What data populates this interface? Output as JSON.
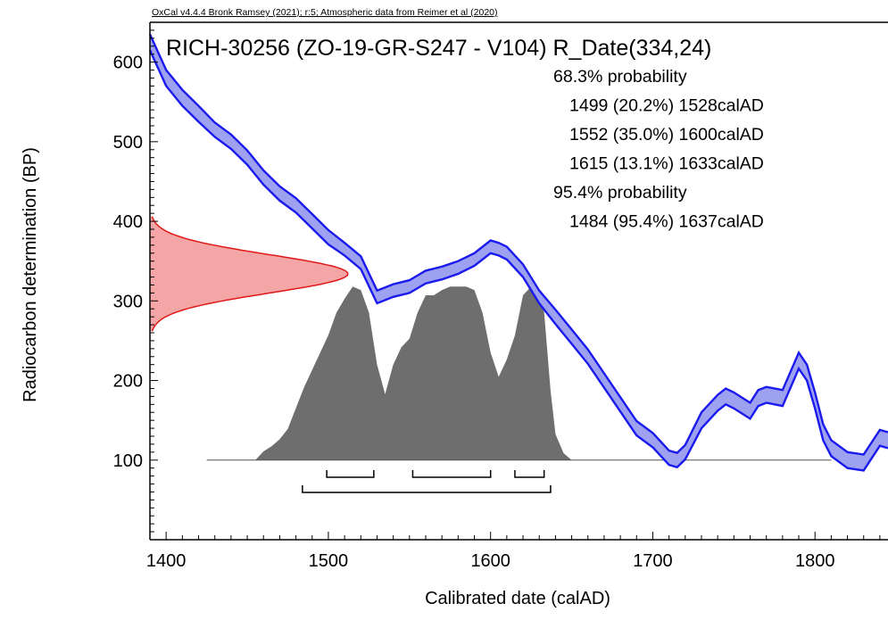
{
  "chart_data": {
    "type": "area",
    "header": "OxCal v4.4.4 Bronk Ramsey (2021); r:5; Atmospheric data from Reimer et al (2020)",
    "title": "RICH-30256 (ZO-19-GR-S247 - V104) R_Date(334,24)",
    "xlabel": "Calibrated date (calAD)",
    "ylabel": "Radiocarbon determination (BP)",
    "xlim": [
      1390,
      1845
    ],
    "ylim": [
      0,
      650
    ],
    "x_ticks": [
      1400,
      1500,
      1600,
      1700,
      1800
    ],
    "y_ticks": [
      100,
      200,
      300,
      400,
      500,
      600
    ],
    "probability_summary": [
      {
        "text": "68.3% probability",
        "level": 0
      },
      {
        "text": "1499 (20.2%) 1528calAD",
        "level": 1
      },
      {
        "text": "1552 (35.0%) 1600calAD",
        "level": 1
      },
      {
        "text": "1615 (13.1%) 1633calAD",
        "level": 1
      },
      {
        "text": "95.4% probability",
        "level": 0
      },
      {
        "text": "1484 (95.4%) 1637calAD",
        "level": 1
      }
    ],
    "ranges_68": [
      [
        1499,
        1528
      ],
      [
        1552,
        1600
      ],
      [
        1615,
        1633
      ]
    ],
    "ranges_95": [
      [
        1484,
        1637
      ]
    ],
    "radiocarbon_date": {
      "mean": 334,
      "sd": 24
    },
    "calibration_curve": {
      "x": [
        1390,
        1400,
        1410,
        1420,
        1430,
        1440,
        1450,
        1460,
        1470,
        1480,
        1490,
        1500,
        1510,
        1520,
        1530,
        1540,
        1550,
        1560,
        1570,
        1580,
        1590,
        1600,
        1605,
        1610,
        1620,
        1630,
        1640,
        1650,
        1660,
        1670,
        1680,
        1690,
        1700,
        1710,
        1715,
        1720,
        1730,
        1740,
        1745,
        1750,
        1760,
        1765,
        1770,
        1780,
        1790,
        1795,
        1800,
        1805,
        1810,
        1820,
        1830,
        1840,
        1845
      ],
      "mean": [
        625,
        580,
        555,
        535,
        515,
        500,
        480,
        455,
        435,
        420,
        400,
        380,
        365,
        348,
        305,
        313,
        318,
        330,
        335,
        342,
        352,
        368,
        365,
        360,
        338,
        305,
        280,
        255,
        230,
        200,
        170,
        140,
        125,
        103,
        100,
        110,
        150,
        172,
        180,
        175,
        162,
        178,
        182,
        178,
        225,
        210,
        175,
        135,
        115,
        100,
        97,
        128,
        125
      ],
      "sigma": [
        10,
        10,
        10,
        10,
        9,
        9,
        9,
        9,
        9,
        9,
        9,
        9,
        8,
        8,
        8,
        8,
        8,
        8,
        8,
        8,
        8,
        8,
        8,
        8,
        8,
        8,
        9,
        9,
        9,
        9,
        9,
        9,
        9,
        9,
        9,
        9,
        10,
        10,
        10,
        10,
        10,
        10,
        10,
        10,
        10,
        10,
        10,
        10,
        10,
        10,
        10,
        10,
        10
      ]
    },
    "posterior_distribution": {
      "x": [
        1425,
        1455,
        1460,
        1465,
        1470,
        1475,
        1480,
        1485,
        1490,
        1495,
        1500,
        1505,
        1510,
        1515,
        1520,
        1525,
        1530,
        1535,
        1540,
        1545,
        1550,
        1555,
        1560,
        1565,
        1570,
        1575,
        1580,
        1585,
        1590,
        1595,
        1600,
        1605,
        1610,
        1615,
        1620,
        1625,
        1630,
        1633,
        1637,
        1640,
        1645,
        1650,
        1700,
        1810
      ],
      "y": [
        0,
        0,
        0.05,
        0.08,
        0.12,
        0.18,
        0.3,
        0.42,
        0.52,
        0.62,
        0.72,
        0.85,
        0.93,
        1.0,
        0.98,
        0.85,
        0.55,
        0.38,
        0.55,
        0.65,
        0.7,
        0.85,
        0.95,
        0.95,
        0.98,
        1.0,
        1.0,
        1.0,
        0.98,
        0.85,
        0.62,
        0.48,
        0.58,
        0.72,
        0.95,
        1.0,
        0.98,
        0.85,
        0.4,
        0.15,
        0.04,
        0,
        0,
        0
      ]
    },
    "colors": {
      "curve_line": "#1a1aee",
      "curve_fill": "#9ea0f0",
      "date_line": "#e01818",
      "date_fill": "#f4a6a6",
      "posterior_fill": "#6e6e6e",
      "axis": "#000000"
    }
  }
}
